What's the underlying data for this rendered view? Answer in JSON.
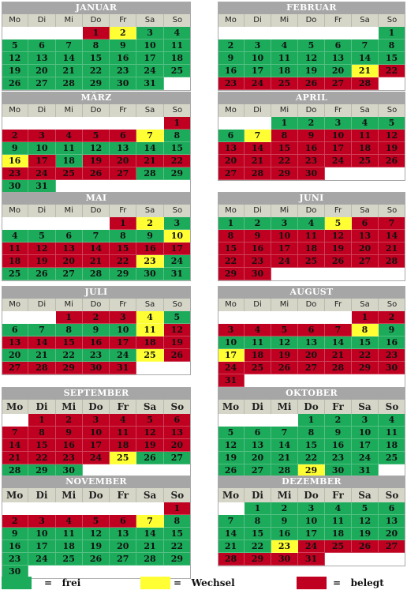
{
  "weekday_labels": [
    "Mo",
    "Di",
    "Mi",
    "Do",
    "Fr",
    "Sa",
    "So"
  ],
  "colors": {
    "frei": "#1bab5a",
    "belegt": "#c00020",
    "wechsel": "#ffff33",
    "header": "#a6a6a6",
    "weekday_bg": "#d6d6c8"
  },
  "months": [
    {
      "name": "JANUAR",
      "start": 3,
      "days": 31,
      "status": "eeegrygggggggggggggggggggggggggggggggg"
    },
    {
      "name": "FEBRUAR",
      "start": 6,
      "days": 28,
      "status": ""
    },
    {
      "name": "MÄRZ",
      "start": 6,
      "days": 31,
      "status": ""
    },
    {
      "name": "APRIL",
      "start": 2,
      "days": 30,
      "status": ""
    },
    {
      "name": "MAI",
      "start": 4,
      "days": 31,
      "status": ""
    },
    {
      "name": "JUNI",
      "start": 0,
      "days": 30,
      "status": ""
    },
    {
      "name": "JULI",
      "start": 2,
      "days": 31,
      "status": ""
    },
    {
      "name": "AUGUST",
      "start": 5,
      "days": 31,
      "status": ""
    },
    {
      "name": "SEPTEMBER",
      "start": 1,
      "days": 30,
      "status": ""
    },
    {
      "name": "OKTOBER",
      "start": 3,
      "days": 31,
      "status": ""
    },
    {
      "name": "NOVEMBER",
      "start": 6,
      "days": 30,
      "status": ""
    },
    {
      "name": "DEZEMBER",
      "start": 1,
      "days": 31,
      "status": ""
    }
  ],
  "day_status": [
    "rygggggggggggggggggggggggggggggg",
    "ggggggggggggggggggggyrrrrrrrrr",
    "rrrrrryggggggggyrgrrrrrrrrrggggggg",
    "ggggggyrrrrrrrrrrrrrrrrrrrrrrrr",
    "rygggggggyrrrrrrrrrrrryggggggggg",
    "ggggyrrrrrrrrrrrrrrrrrrrrrrrrrr",
    "rrryggggggyrrrrrrrrgggggyrrrrrr",
    "rrrrrrryggggggggyrrrrrrrrrrrrrrr",
    "rrrrrrrrrrrrrrrrrrrrrrrrygggg",
    "ggggggggggggggggggggggggggggygg",
    "rrrrrrygggggggggggggggggggggggg",
    "ggggggggggggggggggggggyrrrrrrrrrrr"
  ],
  "legend": [
    {
      "key": "frei",
      "text": "=   frei"
    },
    {
      "key": "wechsel",
      "text": "=   Wechsel"
    },
    {
      "key": "belegt",
      "text": "=   belegt"
    }
  ]
}
